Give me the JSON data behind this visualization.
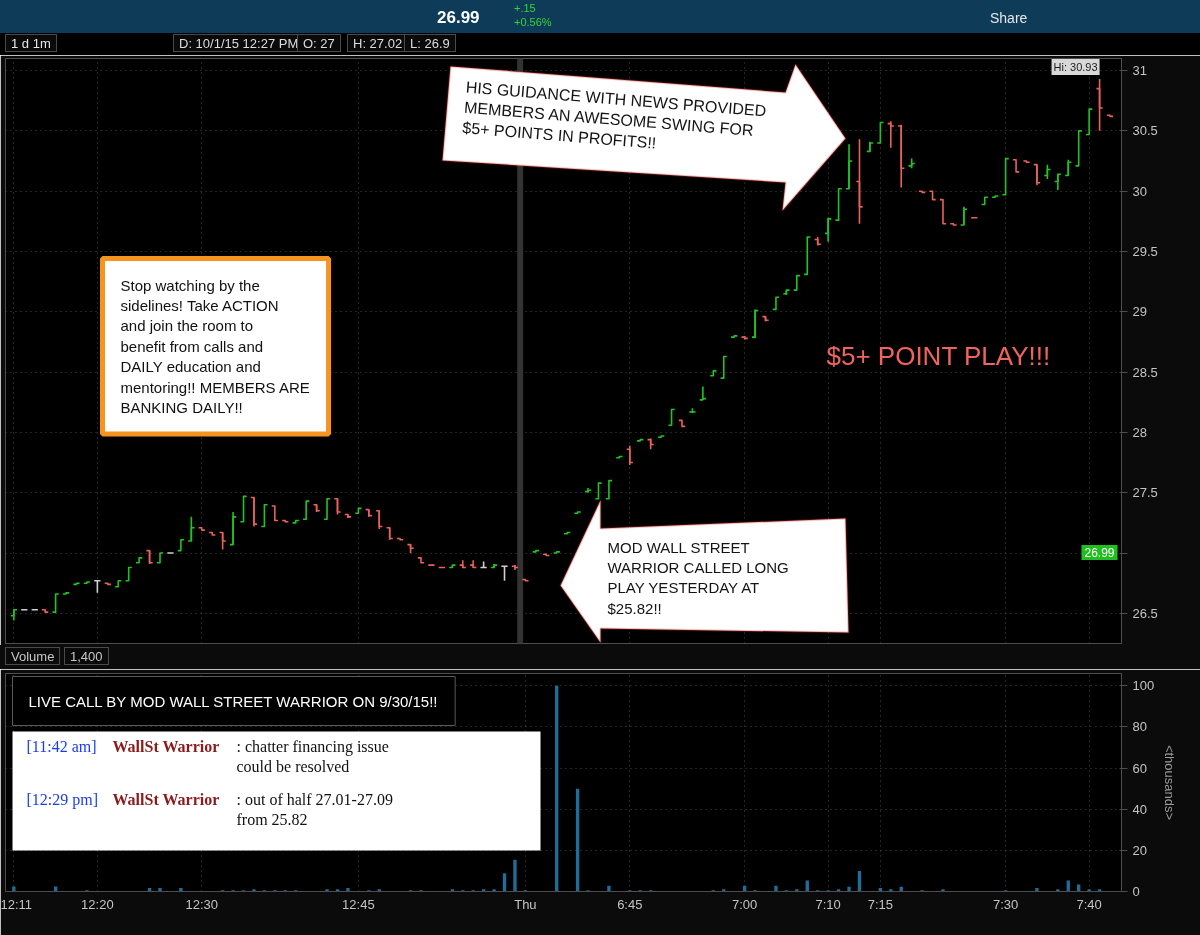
{
  "chart_data": [
    {
      "type": "candlestick",
      "title": "1 d 1m",
      "categories": [
        "12:11",
        null,
        null,
        null,
        null,
        null,
        null,
        null,
        "12:20",
        null,
        null,
        null,
        null,
        null,
        null,
        null,
        null,
        null,
        "12:30",
        null,
        null,
        null,
        null,
        null,
        null,
        null,
        null,
        null,
        null,
        null,
        null,
        null,
        null,
        "12:45",
        null,
        null,
        null,
        null,
        null,
        null,
        null,
        null,
        null,
        null,
        null,
        null,
        null,
        null,
        null,
        "Thu",
        null,
        null,
        null,
        null,
        null,
        null,
        null,
        null,
        null,
        "6:45",
        null,
        null,
        null,
        null,
        null,
        null,
        null,
        null,
        null,
        null,
        "7:00",
        null,
        null,
        null,
        null,
        null,
        null,
        null,
        "7:10",
        null,
        null,
        null,
        null,
        "7:15",
        null,
        null,
        null,
        null,
        null,
        null,
        null,
        null,
        null,
        null,
        null,
        "7:30",
        null,
        null,
        null,
        null,
        null,
        null,
        null,
        "7:40",
        null,
        null
      ],
      "ohlc": [
        [
          26.48,
          26.53,
          26.44,
          26.53
        ],
        [
          26.53,
          26.53,
          26.53,
          26.53
        ],
        [
          26.53,
          26.53,
          26.53,
          26.53
        ],
        [
          26.53,
          26.53,
          26.51,
          26.51
        ],
        [
          26.51,
          26.66,
          26.51,
          26.66
        ],
        [
          26.66,
          26.67,
          26.66,
          26.67
        ],
        [
          26.74,
          26.75,
          26.74,
          26.75
        ],
        [
          26.75,
          26.76,
          26.75,
          26.76
        ],
        [
          26.77,
          26.77,
          26.67,
          26.77
        ],
        [
          26.75,
          26.75,
          26.74,
          26.74
        ],
        [
          26.72,
          26.77,
          26.72,
          26.77
        ],
        [
          26.77,
          26.88,
          26.77,
          26.88
        ],
        [
          26.92,
          26.96,
          26.92,
          26.96
        ],
        [
          27.02,
          27.02,
          26.91,
          26.92
        ],
        [
          26.92,
          27.0,
          26.92,
          27.0
        ],
        [
          27.0,
          27.0,
          27.0,
          27.0
        ],
        [
          27.02,
          27.11,
          27.02,
          27.11
        ],
        [
          27.1,
          27.3,
          27.1,
          27.21
        ],
        [
          27.21,
          27.21,
          27.19,
          27.19
        ],
        [
          27.17,
          27.17,
          27.15,
          27.15
        ],
        [
          27.17,
          27.17,
          27.03,
          27.1
        ],
        [
          27.07,
          27.34,
          27.07,
          27.3
        ],
        [
          27.26,
          27.47,
          27.26,
          27.47
        ],
        [
          27.46,
          27.46,
          27.22,
          27.24
        ],
        [
          27.22,
          27.4,
          27.22,
          27.4
        ],
        [
          27.39,
          27.39,
          27.27,
          27.27
        ],
        [
          27.27,
          27.27,
          27.26,
          27.26
        ],
        [
          27.25,
          27.27,
          27.25,
          27.27
        ],
        [
          27.28,
          27.43,
          27.28,
          27.43
        ],
        [
          27.4,
          27.4,
          27.34,
          27.35
        ],
        [
          27.28,
          27.45,
          27.28,
          27.45
        ],
        [
          27.45,
          27.45,
          27.32,
          27.34
        ],
        [
          27.32,
          27.32,
          27.29,
          27.3
        ],
        [
          27.33,
          27.37,
          27.33,
          27.37
        ],
        [
          27.36,
          27.36,
          27.3,
          27.31
        ],
        [
          27.35,
          27.35,
          27.2,
          27.22
        ],
        [
          27.21,
          27.21,
          27.11,
          27.12
        ],
        [
          27.12,
          27.12,
          27.11,
          27.11
        ],
        [
          27.07,
          27.07,
          27.0,
          27.04
        ],
        [
          26.96,
          26.96,
          26.92,
          26.92
        ],
        [
          26.9,
          26.9,
          26.9,
          26.9
        ],
        [
          26.88,
          26.88,
          26.88,
          26.88
        ],
        [
          26.88,
          26.9,
          26.88,
          26.9
        ],
        [
          26.9,
          26.94,
          26.88,
          26.88
        ],
        [
          26.9,
          26.94,
          26.88,
          26.88
        ],
        [
          26.88,
          26.93,
          26.88,
          26.88
        ],
        [
          26.88,
          26.91,
          26.88,
          26.9
        ],
        [
          26.89,
          26.89,
          26.77,
          26.89
        ],
        [
          26.89,
          26.9,
          26.86,
          26.88
        ],
        [
          26.78,
          26.78,
          26.77,
          26.77
        ],
        [
          27.01,
          27.02,
          27.01,
          27.02
        ],
        [
          26.99,
          26.99,
          26.98,
          26.98
        ],
        [
          27.0,
          27.01,
          27.0,
          27.01
        ],
        [
          27.16,
          27.17,
          27.16,
          27.17
        ],
        [
          27.33,
          27.34,
          27.33,
          27.34
        ],
        [
          27.51,
          27.54,
          27.5,
          27.52
        ],
        [
          27.45,
          27.58,
          27.45,
          27.58
        ],
        [
          27.45,
          27.6,
          27.45,
          27.6
        ],
        [
          27.79,
          27.8,
          27.79,
          27.8
        ],
        [
          27.86,
          27.89,
          27.73,
          27.75
        ],
        [
          27.93,
          27.94,
          27.93,
          27.94
        ],
        [
          27.94,
          27.95,
          27.86,
          27.9
        ],
        [
          27.96,
          27.97,
          27.96,
          27.97
        ],
        [
          28.06,
          28.19,
          28.06,
          28.19
        ],
        [
          28.1,
          28.1,
          28.05,
          28.05
        ],
        [
          28.17,
          28.2,
          28.16,
          28.17
        ],
        [
          28.27,
          28.38,
          28.27,
          28.28
        ],
        [
          28.47,
          28.51,
          28.47,
          28.51
        ],
        [
          28.45,
          28.63,
          28.45,
          28.63
        ],
        [
          28.79,
          28.8,
          28.79,
          28.8
        ],
        [
          28.79,
          28.8,
          28.77,
          28.78
        ],
        [
          28.79,
          29.02,
          28.78,
          29.01
        ],
        [
          28.96,
          28.96,
          28.92,
          28.93
        ],
        [
          29.02,
          29.12,
          29.02,
          29.12
        ],
        [
          29.15,
          29.18,
          29.14,
          29.18
        ],
        [
          29.18,
          29.3,
          29.18,
          29.3
        ],
        [
          29.31,
          29.62,
          29.31,
          29.62
        ],
        [
          29.6,
          29.62,
          29.55,
          29.56
        ],
        [
          29.65,
          29.78,
          29.58,
          29.77
        ],
        [
          29.76,
          30.02,
          29.76,
          30.02
        ],
        [
          30.02,
          30.39,
          30.02,
          30.25
        ],
        [
          30.08,
          30.43,
          29.73,
          29.87
        ],
        [
          30.33,
          30.41,
          30.33,
          30.4
        ],
        [
          30.4,
          30.57,
          30.4,
          30.57
        ],
        [
          30.56,
          30.58,
          30.36,
          30.54
        ],
        [
          30.54,
          30.55,
          30.03,
          30.19
        ],
        [
          30.21,
          30.27,
          30.19,
          30.23
        ],
        [
          30.0,
          30.0,
          29.99,
          29.99
        ],
        [
          30.0,
          30.0,
          29.93,
          29.93
        ],
        [
          29.93,
          29.93,
          29.73,
          29.73
        ],
        [
          29.73,
          29.73,
          29.72,
          29.72
        ],
        [
          29.72,
          29.87,
          29.72,
          29.85
        ],
        [
          29.78,
          29.78,
          29.78,
          29.78
        ],
        [
          29.89,
          29.95,
          29.89,
          29.95
        ],
        [
          29.95,
          29.96,
          29.95,
          29.96
        ],
        [
          29.97,
          30.27,
          29.97,
          30.27
        ],
        [
          30.26,
          30.26,
          30.16,
          30.16
        ],
        [
          30.25,
          30.25,
          30.24,
          30.24
        ],
        [
          30.22,
          30.22,
          30.05,
          30.07
        ],
        [
          30.13,
          30.22,
          30.1,
          30.18
        ],
        [
          30.08,
          30.14,
          30.01,
          30.14
        ],
        [
          30.13,
          30.26,
          30.13,
          30.24
        ],
        [
          30.21,
          30.5,
          30.21,
          30.5
        ],
        [
          30.47,
          30.68,
          30.47,
          30.68
        ],
        [
          30.85,
          30.93,
          30.5,
          30.69
        ],
        [
          30.63,
          30.63,
          30.62,
          30.62
        ]
      ],
      "colors": [
        "#21c421",
        "#cfcfcf",
        "#cfcfcf",
        "#e8625b",
        "#21c421",
        "#21c421",
        "#21c421",
        "#21c421",
        "#cfcfcf",
        "#e8625b",
        "#21c421",
        "#21c421",
        "#21c421",
        "#e8625b",
        "#21c421",
        "#cfcfcf",
        "#21c421",
        "#21c421",
        "#e8625b",
        "#e8625b",
        "#e8625b",
        "#21c421",
        "#21c421",
        "#e8625b",
        "#21c421",
        "#e8625b",
        "#e8625b",
        "#21c421",
        "#21c421",
        "#e8625b",
        "#21c421",
        "#e8625b",
        "#e8625b",
        "#21c421",
        "#e8625b",
        "#e8625b",
        "#e8625b",
        "#e8625b",
        "#e8625b",
        "#e8625b",
        "#e8625b",
        "#e8625b",
        "#21c421",
        "#e8625b",
        "#e8625b",
        "#cfcfcf",
        "#21c421",
        "#cfcfcf",
        "#e8625b",
        "#e8625b",
        "#21c421",
        "#e8625b",
        "#21c421",
        "#21c421",
        "#21c421",
        "#21c421",
        "#21c421",
        "#21c421",
        "#21c421",
        "#e8625b",
        "#21c421",
        "#e8625b",
        "#21c421",
        "#21c421",
        "#e8625b",
        "#21c421",
        "#21c421",
        "#21c421",
        "#21c421",
        "#21c421",
        "#e8625b",
        "#21c421",
        "#e8625b",
        "#21c421",
        "#21c421",
        "#21c421",
        "#21c421",
        "#e8625b",
        "#21c421",
        "#21c421",
        "#21c421",
        "#e8625b",
        "#21c421",
        "#21c421",
        "#e8625b",
        "#e8625b",
        "#21c421",
        "#e8625b",
        "#e8625b",
        "#e8625b",
        "#e8625b",
        "#21c421",
        "#e8625b",
        "#21c421",
        "#21c421",
        "#21c421",
        "#e8625b",
        "#e8625b",
        "#e8625b",
        "#21c421",
        "#21c421",
        "#21c421",
        "#21c421",
        "#21c421",
        "#e8625b",
        "#e8625b"
      ],
      "ylim": [
        26.25,
        31.1
      ],
      "yticks": [
        26.5,
        {
          "value": 27,
          "label": null
        },
        27.5,
        28,
        28.5,
        29,
        29.5,
        30,
        30.5,
        31
      ],
      "grid": true,
      "tick_labels": "y",
      "ref_lines": [
        {
          "axis": "x",
          "value": "Thu",
          "color": "#333333"
        }
      ],
      "annotations": [
        "26.99",
        "+.15",
        "+0.56%",
        "Share",
        "D: 10/1/15 12:27 PM",
        "O: 27",
        "H: 27.02",
        "L: 26.9",
        "HIS GUIDANCE WITH NEWS PROVIDED MEMBERS AN AWESOME SWING FOR $5+ POINTS IN PROFITS!!",
        "Stop watching by the sidelines! Take ACTION and join the room to benefit from calls and DAILY education and mentoring!! MEMBERS ARE BANKING DAILY!!",
        "$5+ POINT PLAY!!!",
        "MOD WALL STREET WARRIOR CALLED LONG PLAY YESTERDAY AT $25.82!!",
        "Hi: 30.93",
        "26.99"
      ]
    },
    {
      "type": "bar",
      "title": "Volume",
      "categories": [
        "12:11",
        null,
        null,
        null,
        null,
        null,
        null,
        null,
        "12:20",
        null,
        null,
        null,
        null,
        null,
        null,
        null,
        null,
        null,
        "12:30",
        null,
        null,
        null,
        null,
        null,
        null,
        null,
        null,
        null,
        null,
        null,
        null,
        null,
        null,
        "12:45",
        null,
        null,
        null,
        null,
        null,
        null,
        null,
        null,
        null,
        null,
        null,
        null,
        null,
        null,
        null,
        "Thu",
        null,
        null,
        null,
        null,
        null,
        null,
        null,
        null,
        null,
        "6:45",
        null,
        null,
        null,
        null,
        null,
        null,
        null,
        null,
        null,
        null,
        "7:00",
        null,
        null,
        null,
        null,
        null,
        null,
        null,
        "7:10",
        null,
        null,
        null,
        null,
        "7:15",
        null,
        null,
        null,
        null,
        null,
        null,
        null,
        null,
        null,
        null,
        null,
        "7:30",
        null,
        null,
        null,
        null,
        null,
        null,
        null,
        "7:40",
        null,
        null
      ],
      "values": [
        2.4,
        null,
        null,
        null,
        2.4,
        null,
        null,
        0.6,
        null,
        null,
        null,
        null,
        null,
        1.7,
        1.7,
        null,
        1.7,
        null,
        null,
        null,
        0.6,
        0.6,
        0.6,
        1.1,
        0.6,
        0.6,
        0.6,
        0.6,
        null,
        null,
        1.1,
        1.1,
        1.7,
        null,
        0.6,
        1.1,
        null,
        null,
        0.6,
        0.6,
        null,
        null,
        1.1,
        0.6,
        0.6,
        1.1,
        1.1,
        8.9,
        15.4,
        0.6,
        null,
        null,
        100,
        null,
        50,
        0.6,
        null,
        2.8,
        null,
        0.6,
        0.6,
        0.6,
        null,
        null,
        null,
        null,
        null,
        0.6,
        1.1,
        null,
        2.8,
        0.6,
        null,
        2.8,
        0.6,
        1.1,
        5.3,
        0.6,
        0.6,
        1.1,
        2.3,
        10,
        null,
        1.7,
        1.1,
        2.3,
        null,
        0.6,
        null,
        1.1,
        null,
        null,
        null,
        null,
        null,
        0.6,
        null,
        null,
        1.7,
        null,
        1.1,
        5.3,
        3.4,
        1.1,
        1.1,
        null
      ],
      "color": "#1f6e9a",
      "ylim": [
        0,
        106
      ],
      "yticks": [
        0,
        20,
        40,
        60,
        80,
        100
      ],
      "ylabel": "<thousands>",
      "grid": true,
      "annotations": [
        "1,400",
        "LIVE CALL BY MOD WALL STREET WARRIOR ON 9/30/15!!",
        "[11:42 am]",
        "WallSt Warrior",
        ": chatter financing issue could be resolved",
        "[12:29 pm]",
        "WallSt Warrior",
        ": out of half 27.01-27.09 from 25.82"
      ]
    }
  ]
}
